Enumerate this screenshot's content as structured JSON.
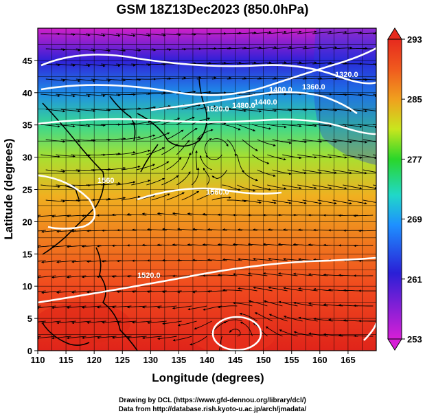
{
  "title": "GSM 18Z13Dec2023 (850.0hPa)",
  "x_axis": {
    "label": "Longitude (degrees)",
    "ticks": [
      "110",
      "115",
      "120",
      "125",
      "130",
      "135",
      "140",
      "145",
      "150",
      "155",
      "160",
      "165"
    ]
  },
  "y_axis": {
    "label": "Latitude  (degrees)",
    "ticks": [
      "0",
      "5",
      "10",
      "15",
      "20",
      "25",
      "30",
      "35",
      "40",
      "45"
    ]
  },
  "colorbar": {
    "labels": [
      "293",
      "285",
      "277",
      "269",
      "261",
      "253"
    ],
    "range": [
      253,
      293
    ],
    "colors": [
      "#d61fd6",
      "#2a1fd6",
      "#1e90ff",
      "#20d8c8",
      "#2ad62a",
      "#c8e61e",
      "#f0a01e",
      "#f05a1e",
      "#e62a1e"
    ]
  },
  "contours": [
    {
      "label": "1320.0"
    },
    {
      "label": "1360.0"
    },
    {
      "label": "1400.0"
    },
    {
      "label": "1440.0"
    },
    {
      "label": "1480.0"
    },
    {
      "label": "1520.0"
    },
    {
      "label": "1520.0"
    },
    {
      "label": "1560"
    },
    {
      "label": "1560.0"
    }
  ],
  "credits": [
    "Drawing by DCL (https://www.gfd-dennou.org/library/dcl/)",
    "Data from http://database.rish.kyoto-u.ac.jp/arch/jmadata/"
  ]
}
